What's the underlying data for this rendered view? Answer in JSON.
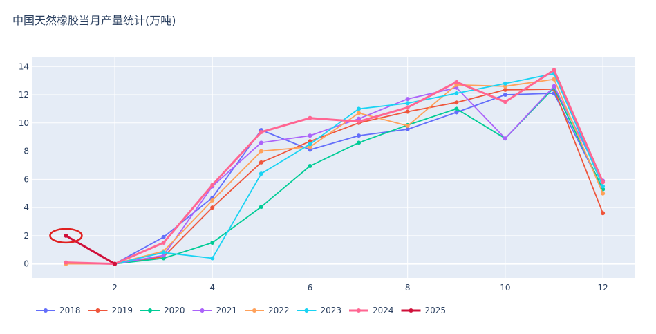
{
  "chart_data": {
    "type": "line",
    "title": "中国天然橡胶当月产量统计(万吨)",
    "xlabel": "",
    "ylabel": "",
    "xlim": [
      0.3,
      12.65
    ],
    "ylim": [
      -1,
      14.7
    ],
    "x_ticks": [
      2,
      4,
      6,
      8,
      10,
      12
    ],
    "y_ticks": [
      0,
      2,
      4,
      6,
      8,
      10,
      12,
      14
    ],
    "grid": true,
    "legend_position": "bottom",
    "background": "#e5ecf6",
    "series": [
      {
        "name": "2018",
        "color": "#636efa",
        "x": [
          2,
          3,
          4,
          5,
          6,
          7,
          8,
          9,
          10,
          11,
          12
        ],
        "values": [
          0.0,
          1.9,
          4.7,
          9.5,
          8.1,
          9.1,
          9.55,
          10.75,
          12.0,
          12.1,
          5.3
        ]
      },
      {
        "name": "2019",
        "color": "#ef553b",
        "x": [
          2,
          3,
          4,
          5,
          6,
          7,
          8,
          9,
          10,
          11,
          12
        ],
        "values": [
          0.0,
          0.5,
          4.0,
          7.2,
          8.7,
          10.0,
          10.8,
          11.45,
          12.35,
          12.4,
          3.6
        ]
      },
      {
        "name": "2020",
        "color": "#00cc96",
        "x": [
          2,
          3,
          4,
          5,
          6,
          7,
          8,
          9,
          10,
          11,
          12
        ],
        "values": [
          0.0,
          0.4,
          1.5,
          4.05,
          6.95,
          8.6,
          9.85,
          11.0,
          8.9,
          12.5,
          5.3
        ]
      },
      {
        "name": "2021",
        "color": "#ab63fa",
        "x": [
          2,
          3,
          4,
          5,
          6,
          7,
          8,
          9,
          10,
          11,
          12
        ],
        "values": [
          0.0,
          0.6,
          5.5,
          8.6,
          9.1,
          10.3,
          11.7,
          12.5,
          8.9,
          12.6,
          5.9
        ]
      },
      {
        "name": "2022",
        "color": "#ffa15a",
        "x": [
          1,
          2,
          3,
          4,
          5,
          6,
          7,
          8,
          9,
          10,
          11,
          12
        ],
        "values": [
          0.0,
          0.0,
          0.9,
          4.5,
          8.0,
          8.3,
          10.7,
          9.8,
          12.7,
          12.6,
          13.1,
          5.0
        ]
      },
      {
        "name": "2023",
        "color": "#19d3f3",
        "x": [
          2,
          3,
          4,
          5,
          6,
          7,
          8,
          9,
          10,
          11,
          12
        ],
        "values": [
          0.0,
          0.8,
          0.4,
          6.4,
          8.5,
          11.0,
          11.4,
          12.1,
          12.8,
          13.5,
          5.5
        ]
      },
      {
        "name": "2024",
        "color": "#ff6692",
        "x": [
          1,
          2,
          3,
          4,
          5,
          6,
          7,
          8,
          9,
          10,
          11,
          12
        ],
        "values": [
          0.1,
          0.0,
          1.5,
          5.6,
          9.35,
          10.35,
          10.1,
          11.1,
          12.9,
          11.5,
          13.75,
          5.8
        ]
      },
      {
        "name": "2025",
        "color": "#d0103a",
        "x": [
          1,
          2
        ],
        "values": [
          2.0,
          0.0
        ]
      }
    ],
    "annotation": {
      "type": "ellipse",
      "color": "#e02020",
      "x": 1,
      "y": 2.0
    }
  }
}
